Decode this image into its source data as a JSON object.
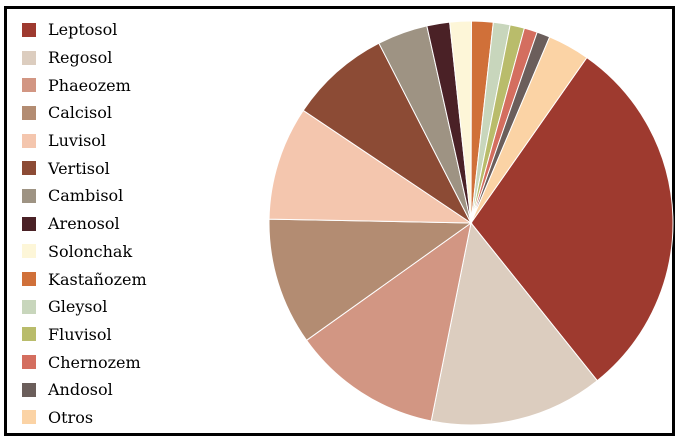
{
  "chart_data": {
    "type": "pie",
    "title": "",
    "legend_position": "left",
    "slices": [
      {
        "label": "Leptosol",
        "value": 30.8,
        "color": "#9E3A2F"
      },
      {
        "label": "Regosol",
        "value": 14.5,
        "color": "#DCCDBF"
      },
      {
        "label": "Phaeozem",
        "value": 12.5,
        "color": "#D29683"
      },
      {
        "label": "Calcisol",
        "value": 10.6,
        "color": "#B38C72"
      },
      {
        "label": "Luvisol",
        "value": 9.5,
        "color": "#F4C6AE"
      },
      {
        "label": "Vertisol",
        "value": 8.4,
        "color": "#8C4B35"
      },
      {
        "label": "Cambisol",
        "value": 4.2,
        "color": "#9E9383"
      },
      {
        "label": "Arenosol",
        "value": 1.9,
        "color": "#4A2126"
      },
      {
        "label": "Solonchak",
        "value": 1.8,
        "color": "#FDF6D8"
      },
      {
        "label": "Kastañozem",
        "value": 1.8,
        "color": "#D07039"
      },
      {
        "label": "Gleysol",
        "value": 1.4,
        "color": "#C8D6BC"
      },
      {
        "label": "Fluvisol",
        "value": 1.2,
        "color": "#B9BC6B"
      },
      {
        "label": "Chernozem",
        "value": 1.1,
        "color": "#D46E5F"
      },
      {
        "label": "Andosol",
        "value": 1.1,
        "color": "#6B5E5B"
      },
      {
        "label": "Otros",
        "value": 3.5,
        "color": "#FBD3A5"
      }
    ]
  }
}
